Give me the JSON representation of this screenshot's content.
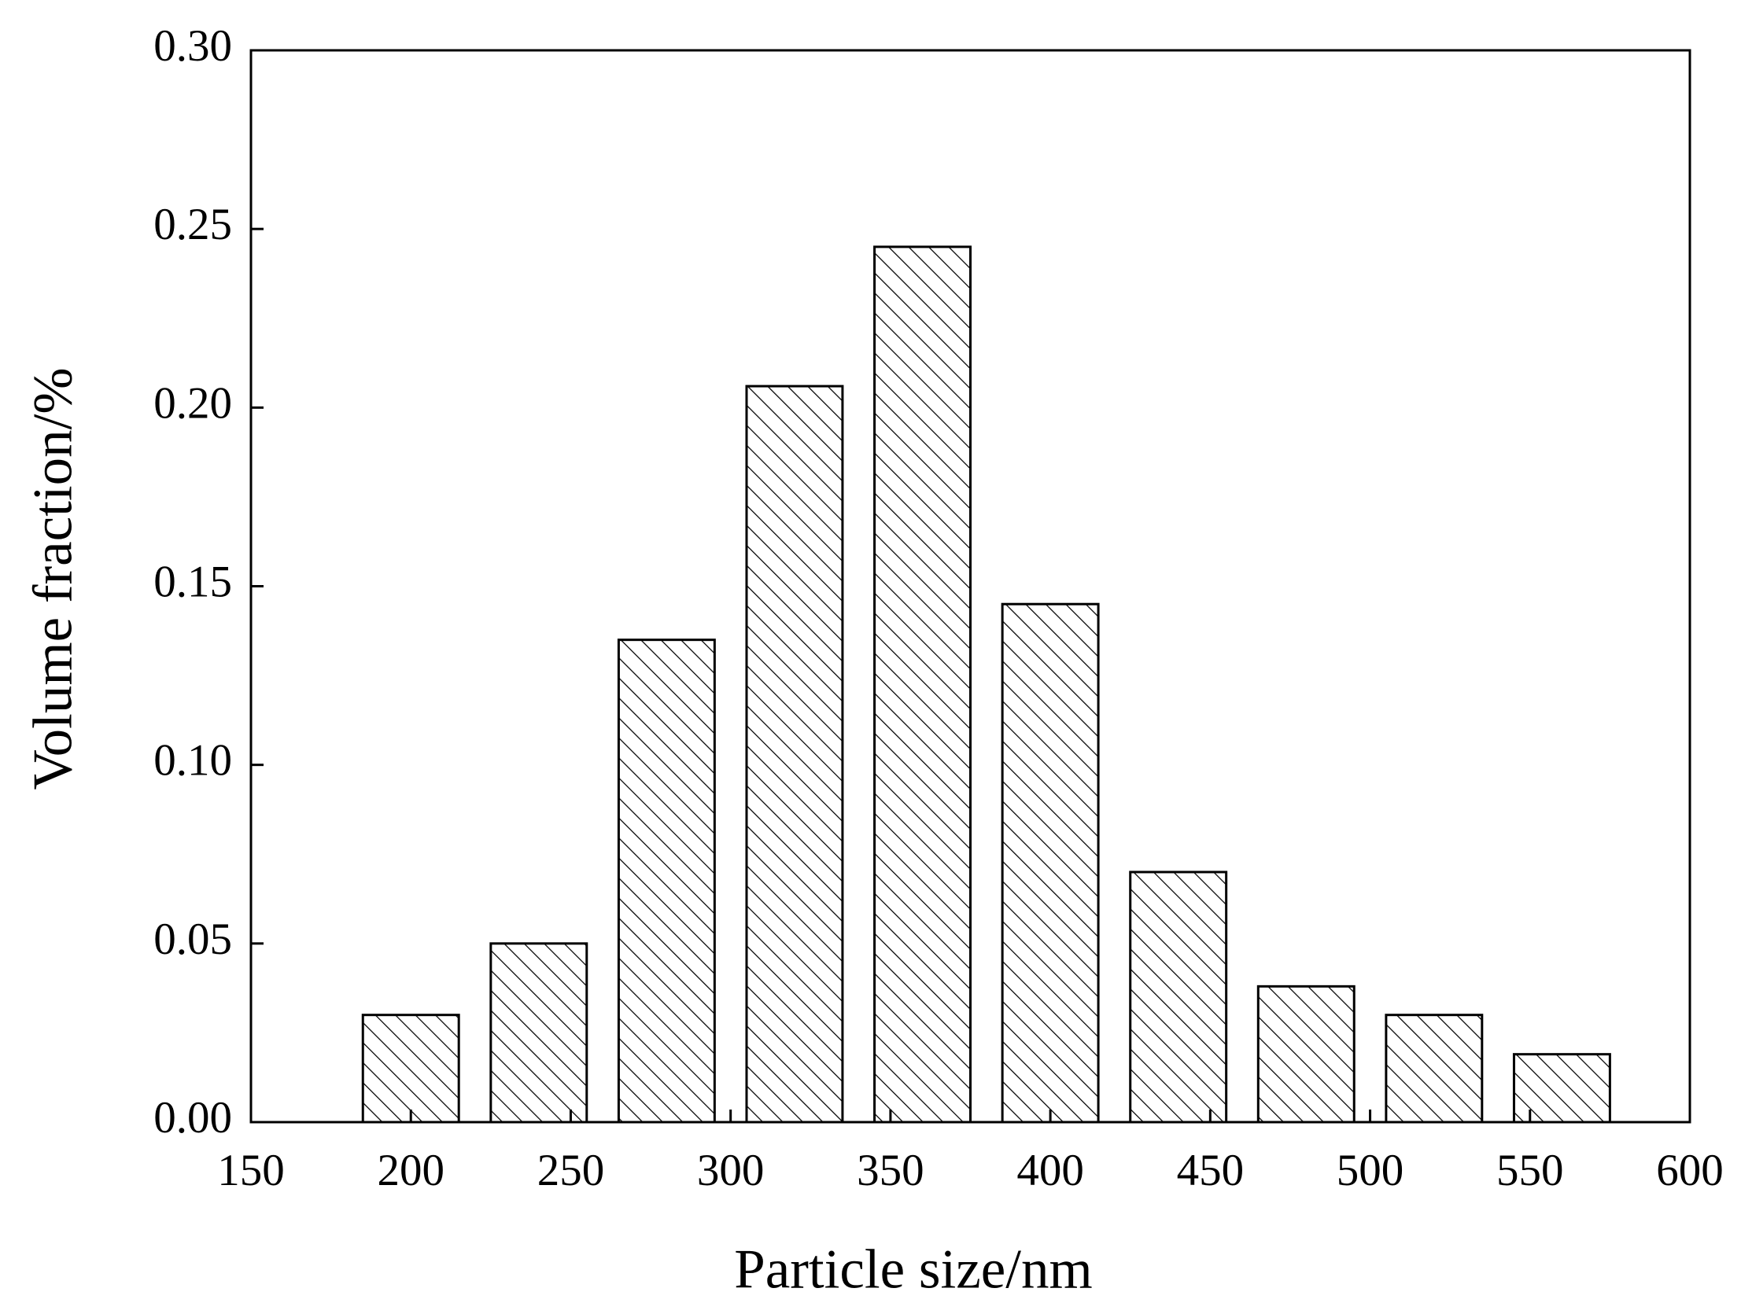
{
  "chart_data": {
    "type": "bar",
    "x_label": "Particle size/nm",
    "y_label": "Volume fraction/%",
    "x": [
      200,
      240,
      280,
      320,
      360,
      400,
      440,
      480,
      520,
      560
    ],
    "values": [
      0.03,
      0.05,
      0.135,
      0.206,
      0.245,
      0.145,
      0.07,
      0.038,
      0.03,
      0.019
    ],
    "color": "#000000",
    "xlim": [
      150,
      600
    ],
    "xticks": [
      150,
      200,
      250,
      300,
      350,
      400,
      450,
      500,
      550,
      600
    ],
    "ylim": [
      0,
      0.3
    ],
    "yticks": [
      {
        "value": 0,
        "label": "0.00"
      },
      0.05,
      {
        "value": 0.1,
        "label": "0.10"
      },
      0.15,
      {
        "value": 0.2,
        "label": "0.20"
      },
      0.25,
      {
        "value": 0.3,
        "label": "0.30"
      }
    ],
    "grid": false
  }
}
